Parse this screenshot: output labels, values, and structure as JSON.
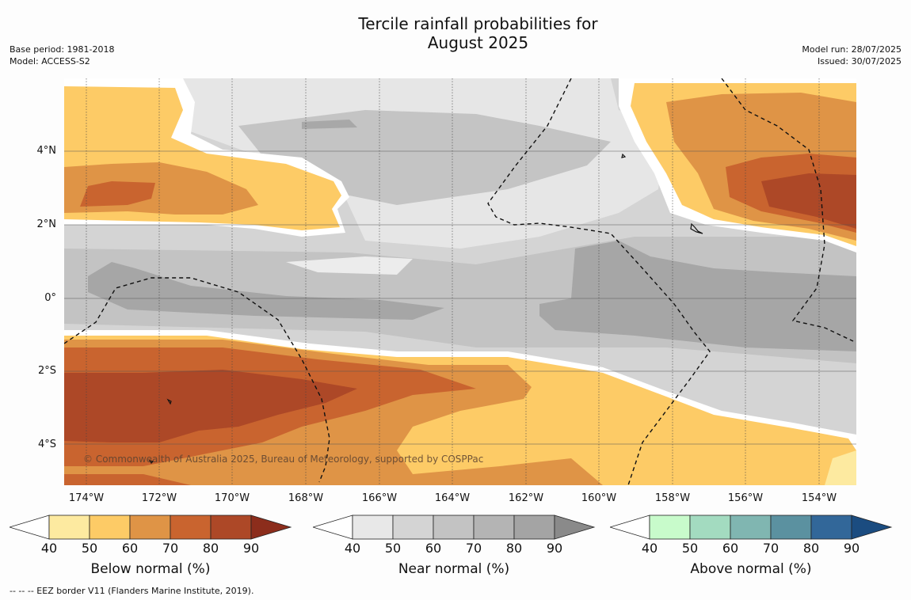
{
  "header": {
    "title_line1": "Tercile rainfall probabilities for",
    "title_line2": "August 2025",
    "base_period": "Base period: 1981-2018",
    "model": "Model: ACCESS-S2",
    "model_run": "Model run: 28/07/2025",
    "issued": "Issued: 30/07/2025"
  },
  "map": {
    "y_ticks": [
      "4°N",
      "2°N",
      "0°",
      "2°S",
      "4°S"
    ],
    "x_ticks": [
      "174°W",
      "172°W",
      "170°W",
      "168°W",
      "166°W",
      "164°W",
      "162°W",
      "160°W",
      "158°W",
      "156°W",
      "154°W"
    ],
    "copyright": "© Commonwealth of Australia 2025, Bureau of Meteorology, supported by COSPPac"
  },
  "colorbars": [
    {
      "label": "Below normal (%)",
      "ticks": [
        "40",
        "50",
        "60",
        "70",
        "80",
        "90"
      ],
      "colors": [
        "#ffffff",
        "#fdeaa0",
        "#fdcb66",
        "#df9446",
        "#c9642f",
        "#ad4827",
        "#8c2d1c"
      ]
    },
    {
      "label": "Near normal (%)",
      "ticks": [
        "40",
        "50",
        "60",
        "70",
        "80",
        "90"
      ],
      "colors": [
        "#ffffff",
        "#e8e8e8",
        "#d4d4d4",
        "#c3c3c3",
        "#b4b4b4",
        "#a4a4a4",
        "#8a8a8a"
      ]
    },
    {
      "label": "Above normal (%)",
      "ticks": [
        "40",
        "50",
        "60",
        "70",
        "80",
        "90"
      ],
      "colors": [
        "#ffffff",
        "#c8fbcb",
        "#a3dbc0",
        "#80b6b1",
        "#5b91a0",
        "#326799",
        "#1b4c80"
      ]
    }
  ],
  "footnote": "--  --  -- EEZ border V11 (Flanders Marine Institute, 2019)."
}
